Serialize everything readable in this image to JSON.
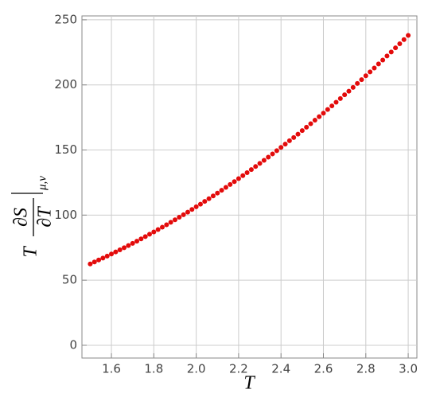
{
  "chart_data": {
    "type": "scatter",
    "xlabel": "T",
    "ylabel": {
      "prefix": "T",
      "numerator": "∂S",
      "denominator": "∂T",
      "subscript": "μ,ν"
    },
    "color": "#e30b0b",
    "grid": true,
    "xlim": [
      1.461,
      3.041
    ],
    "ylim": [
      -9.8,
      253
    ],
    "xticks": [
      1.6,
      1.8,
      {
        "value": 2,
        "label": "2.0"
      },
      2.2,
      2.4,
      2.6,
      2.8,
      {
        "value": 3,
        "label": "3.0"
      }
    ],
    "yticks": [
      0,
      50,
      100,
      150,
      200,
      250
    ],
    "x": [
      1.5,
      1.52,
      1.54,
      1.56,
      1.58,
      1.6,
      1.62,
      1.64,
      1.66,
      1.68,
      1.7,
      1.72,
      1.74,
      1.76,
      1.78,
      1.8,
      1.82,
      1.84,
      1.86,
      1.88,
      1.9,
      1.92,
      1.94,
      1.96,
      1.98,
      2.0,
      2.02,
      2.04,
      2.06,
      2.08,
      2.1,
      2.12,
      2.14,
      2.16,
      2.18,
      2.2,
      2.22,
      2.24,
      2.26,
      2.28,
      2.3,
      2.32,
      2.34,
      2.36,
      2.38,
      2.4,
      2.42,
      2.44,
      2.46,
      2.48,
      2.5,
      2.52,
      2.54,
      2.56,
      2.58,
      2.6,
      2.62,
      2.64,
      2.66,
      2.68,
      2.7,
      2.72,
      2.74,
      2.76,
      2.78,
      2.8,
      2.82,
      2.84,
      2.86,
      2.88,
      2.9,
      2.92,
      2.94,
      2.96,
      2.98,
      3.0
    ],
    "values": [
      62.5,
      64.0,
      65.5,
      67.0,
      68.5,
      70.1,
      71.7,
      73.3,
      74.9,
      76.6,
      78.3,
      80.0,
      81.7,
      83.5,
      85.3,
      87.1,
      88.9,
      90.7,
      92.6,
      94.5,
      96.4,
      98.4,
      100.3,
      102.3,
      104.3,
      106.4,
      108.4,
      110.5,
      112.6,
      114.7,
      116.9,
      119.1,
      121.3,
      123.5,
      125.7,
      128.0,
      130.3,
      132.6,
      135.0,
      137.3,
      139.7,
      142.1,
      144.5,
      147.0,
      149.5,
      152.0,
      154.5,
      157.1,
      159.6,
      162.2,
      164.9,
      167.5,
      170.2,
      172.9,
      175.6,
      178.3,
      181.1,
      183.9,
      186.7,
      189.5,
      192.4,
      195.2,
      198.1,
      201.1,
      204.0,
      207.0,
      210.0,
      213.0,
      216.1,
      219.1,
      222.2,
      225.3,
      228.5,
      231.6,
      234.8,
      238.0
    ]
  }
}
